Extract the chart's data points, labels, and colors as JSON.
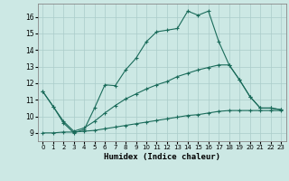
{
  "xlabel": "Humidex (Indice chaleur)",
  "background_color": "#cce8e4",
  "grid_color": "#aaccca",
  "line_color": "#1a6b5a",
  "xlim": [
    -0.5,
    23.5
  ],
  "ylim": [
    8.5,
    16.8
  ],
  "xticks": [
    0,
    1,
    2,
    3,
    4,
    5,
    6,
    7,
    8,
    9,
    10,
    11,
    12,
    13,
    14,
    15,
    16,
    17,
    18,
    19,
    20,
    21,
    22,
    23
  ],
  "yticks": [
    9,
    10,
    11,
    12,
    13,
    14,
    15,
    16
  ],
  "line1_x": [
    0,
    1,
    2,
    3,
    4,
    5,
    6,
    7,
    8,
    9,
    10,
    11,
    12,
    13,
    14,
    15,
    16,
    17,
    18,
    19,
    20,
    21,
    22,
    23
  ],
  "line1_y": [
    11.5,
    10.6,
    9.6,
    9.0,
    9.2,
    10.5,
    11.9,
    11.85,
    12.8,
    13.5,
    14.5,
    15.1,
    15.2,
    15.3,
    16.35,
    16.1,
    16.35,
    14.5,
    13.1,
    12.2,
    11.2,
    10.5,
    10.5,
    10.4
  ],
  "line2_x": [
    0,
    1,
    2,
    3,
    4,
    5,
    6,
    7,
    8,
    9,
    10,
    11,
    12,
    13,
    14,
    15,
    16,
    17,
    18,
    19,
    20,
    21,
    22,
    23
  ],
  "line2_y": [
    11.5,
    10.6,
    9.7,
    9.1,
    9.3,
    9.7,
    10.2,
    10.65,
    11.05,
    11.35,
    11.65,
    11.9,
    12.1,
    12.4,
    12.6,
    12.8,
    12.95,
    13.1,
    13.1,
    12.2,
    11.2,
    10.5,
    10.5,
    10.4
  ],
  "line3_x": [
    0,
    1,
    2,
    3,
    4,
    5,
    6,
    7,
    8,
    9,
    10,
    11,
    12,
    13,
    14,
    15,
    16,
    17,
    18,
    19,
    20,
    21,
    22,
    23
  ],
  "line3_y": [
    9.0,
    9.0,
    9.05,
    9.05,
    9.1,
    9.15,
    9.25,
    9.35,
    9.45,
    9.55,
    9.65,
    9.75,
    9.85,
    9.95,
    10.05,
    10.1,
    10.2,
    10.3,
    10.35,
    10.35,
    10.35,
    10.35,
    10.35,
    10.35
  ]
}
